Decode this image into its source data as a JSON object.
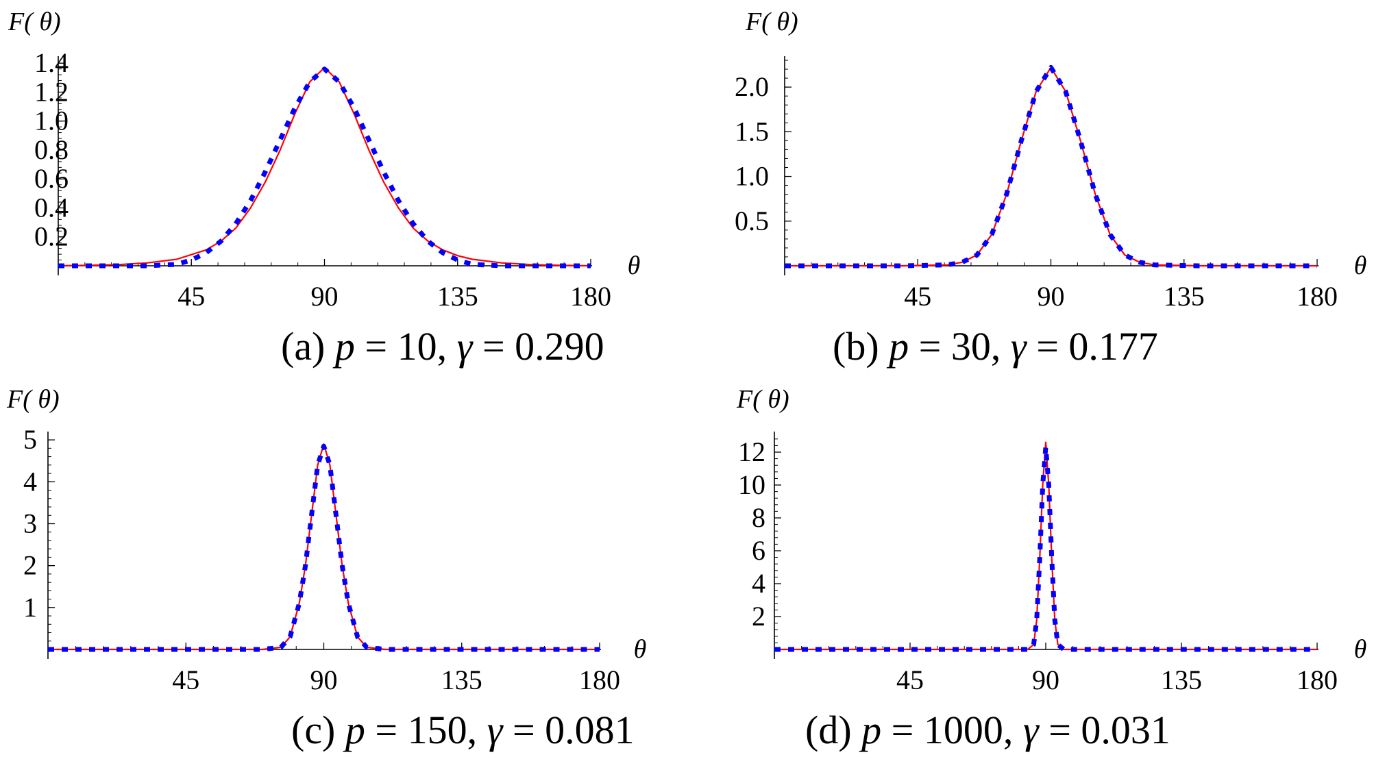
{
  "chart_data": [
    {
      "type": "line",
      "xlabel": "θ",
      "ylabel": "F( θ)",
      "caption": {
        "label": "(a)",
        "p_text": "p",
        "p_value": "10",
        "gamma_text": "γ",
        "gamma_value": "0.290"
      },
      "xticks": [
        45,
        90,
        135,
        180
      ],
      "xlim": [
        0,
        180
      ],
      "yticks": [
        0.2,
        0.4,
        0.6,
        0.8,
        1.0,
        1.2,
        1.4
      ],
      "ylim": [
        0,
        1.42
      ],
      "ytick_decimals": 1,
      "series": [
        {
          "style": "solid",
          "color": "#ff0000",
          "x": [
            0,
            10,
            20,
            30,
            40,
            50,
            55,
            60,
            65,
            70,
            75,
            80,
            85,
            90,
            95,
            100,
            105,
            110,
            115,
            120,
            125,
            130,
            135,
            140,
            150,
            160,
            170,
            180
          ],
          "y": [
            0.0,
            0.003,
            0.008,
            0.02,
            0.045,
            0.11,
            0.17,
            0.26,
            0.4,
            0.58,
            0.8,
            1.05,
            1.27,
            1.37,
            1.27,
            1.05,
            0.8,
            0.58,
            0.4,
            0.26,
            0.17,
            0.11,
            0.07,
            0.045,
            0.02,
            0.008,
            0.003,
            0.0
          ]
        },
        {
          "style": "dashed",
          "color": "#0000ff",
          "x": [
            0,
            10,
            20,
            30,
            40,
            45,
            50,
            55,
            60,
            65,
            70,
            75,
            80,
            85,
            90,
            95,
            100,
            105,
            110,
            115,
            120,
            125,
            130,
            135,
            140,
            150,
            160,
            170,
            180
          ],
          "y": [
            0.0,
            0.0,
            0.0,
            0.0,
            0.01,
            0.04,
            0.09,
            0.17,
            0.29,
            0.45,
            0.65,
            0.87,
            1.09,
            1.27,
            1.36,
            1.27,
            1.09,
            0.87,
            0.65,
            0.45,
            0.29,
            0.17,
            0.09,
            0.04,
            0.01,
            0.0,
            0.0,
            0.0,
            0.0
          ]
        }
      ]
    },
    {
      "type": "line",
      "xlabel": "θ",
      "ylabel": "F( θ)",
      "caption": {
        "label": "(b)",
        "p_text": "p",
        "p_value": "30",
        "gamma_text": "γ",
        "gamma_value": "0.177"
      },
      "xticks": [
        45,
        90,
        135,
        180
      ],
      "xlim": [
        0,
        180
      ],
      "yticks": [
        0.5,
        1.0,
        1.5,
        2.0
      ],
      "ylim": [
        0,
        2.3
      ],
      "ytick_decimals": 1,
      "series": [
        {
          "style": "solid",
          "color": "#ff0000",
          "x": [
            0,
            40,
            55,
            60,
            65,
            70,
            75,
            80,
            85,
            90,
            95,
            100,
            105,
            110,
            115,
            120,
            125,
            140,
            180
          ],
          "y": [
            0.0,
            0.0,
            0.01,
            0.04,
            0.12,
            0.35,
            0.8,
            1.4,
            1.95,
            2.22,
            1.95,
            1.4,
            0.8,
            0.35,
            0.12,
            0.04,
            0.01,
            0.0,
            0.0
          ]
        },
        {
          "style": "dashed",
          "color": "#0000ff",
          "x": [
            0,
            40,
            55,
            60,
            65,
            70,
            75,
            80,
            85,
            90,
            95,
            100,
            105,
            110,
            115,
            120,
            125,
            140,
            180
          ],
          "y": [
            0.0,
            0.0,
            0.01,
            0.04,
            0.12,
            0.35,
            0.8,
            1.4,
            1.95,
            2.22,
            1.95,
            1.4,
            0.8,
            0.35,
            0.12,
            0.04,
            0.01,
            0.0,
            0.0
          ]
        }
      ]
    },
    {
      "type": "line",
      "xlabel": "θ",
      "ylabel": "F( θ)",
      "caption": {
        "label": "(c)",
        "p_text": "p",
        "p_value": "150",
        "gamma_text": "γ",
        "gamma_value": "0.081"
      },
      "xticks": [
        45,
        90,
        135,
        180
      ],
      "xlim": [
        0,
        180
      ],
      "yticks": [
        1,
        2,
        3,
        4,
        5
      ],
      "ylim": [
        0,
        5.1
      ],
      "ytick_decimals": 0,
      "series": [
        {
          "style": "solid",
          "color": "#ff0000",
          "x": [
            0,
            70,
            76,
            79,
            82,
            84,
            86,
            88,
            90,
            92,
            94,
            96,
            98,
            101,
            104,
            110,
            180
          ],
          "y": [
            0.0,
            0.0,
            0.05,
            0.3,
            1.1,
            2.0,
            3.2,
            4.4,
            4.9,
            4.4,
            3.2,
            2.0,
            1.1,
            0.3,
            0.05,
            0.0,
            0.0
          ]
        },
        {
          "style": "dashed",
          "color": "#0000ff",
          "x": [
            0,
            70,
            76,
            79,
            82,
            84,
            86,
            88,
            90,
            92,
            94,
            96,
            98,
            101,
            104,
            110,
            180
          ],
          "y": [
            0.0,
            0.0,
            0.05,
            0.3,
            1.1,
            2.0,
            3.2,
            4.4,
            4.85,
            4.4,
            3.2,
            2.0,
            1.1,
            0.3,
            0.05,
            0.0,
            0.0
          ]
        }
      ]
    },
    {
      "type": "line",
      "xlabel": "θ",
      "ylabel": "F( θ)",
      "caption": {
        "label": "(d)",
        "p_text": "p",
        "p_value": "1000",
        "gamma_text": "γ",
        "gamma_value": "0.031"
      },
      "xticks": [
        45,
        90,
        135,
        180
      ],
      "xlim": [
        0,
        180
      ],
      "yticks": [
        2,
        4,
        6,
        8,
        10,
        12
      ],
      "ylim": [
        0,
        13
      ],
      "ytick_decimals": 0,
      "series": [
        {
          "style": "solid",
          "color": "#ff0000",
          "x": [
            0,
            84,
            86,
            87,
            88,
            89,
            90,
            91,
            92,
            93,
            94,
            96,
            180
          ],
          "y": [
            0.0,
            0.0,
            0.3,
            1.8,
            5.5,
            10.0,
            12.6,
            10.0,
            5.5,
            1.8,
            0.3,
            0.0,
            0.0
          ]
        },
        {
          "style": "dashed",
          "color": "#0000ff",
          "x": [
            0,
            84,
            86,
            87,
            88,
            89,
            90,
            91,
            92,
            93,
            94,
            96,
            180
          ],
          "y": [
            0.0,
            0.0,
            0.3,
            1.8,
            5.5,
            10.0,
            12.3,
            10.0,
            5.5,
            1.8,
            0.3,
            0.0,
            0.0
          ]
        }
      ]
    }
  ]
}
